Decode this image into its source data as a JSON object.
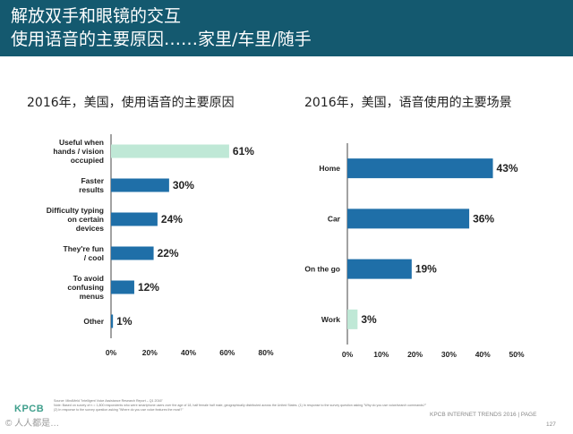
{
  "header": {
    "line1": "解放双手和眼镜的交互",
    "line2": "使用语音的主要原因……家里/车里/随手"
  },
  "colors": {
    "header_bg": "#14596f",
    "primary_bar": "#1f6fa8",
    "highlight_bar": "#bfe8d6",
    "axis": "#444444"
  },
  "chart_data": [
    {
      "type": "bar",
      "orientation": "horizontal",
      "title": "2016年，美国，使用语音的主要原因",
      "categories": [
        "Useful when hands / vision occupied",
        "Faster results",
        "Difficulty typing on certain devices",
        "They're fun / cool",
        "To avoid confusing menus",
        "Other"
      ],
      "category_lines": [
        [
          "Useful when",
          "hands / vision",
          "occupied"
        ],
        [
          "Faster",
          "results"
        ],
        [
          "Difficulty typing",
          "on certain",
          "devices"
        ],
        [
          "They're fun",
          "/ cool"
        ],
        [
          "To avoid",
          "confusing",
          "menus"
        ],
        [
          "Other"
        ]
      ],
      "values": [
        61,
        30,
        24,
        22,
        12,
        1
      ],
      "value_labels": [
        "61%",
        "30%",
        "24%",
        "22%",
        "12%",
        "1%"
      ],
      "xlim": [
        0,
        80
      ],
      "ticks": [
        "0%",
        "20%",
        "40%",
        "60%",
        "80%"
      ],
      "highlight_index": 0
    },
    {
      "type": "bar",
      "orientation": "horizontal",
      "title": "2016年，美国，语音使用的主要场景",
      "categories": [
        "Home",
        "Car",
        "On the go",
        "Work"
      ],
      "category_lines": [
        [
          "Home"
        ],
        [
          "Car"
        ],
        [
          "On the go"
        ],
        [
          "Work"
        ]
      ],
      "values": [
        43,
        36,
        19,
        3
      ],
      "value_labels": [
        "43%",
        "36%",
        "19%",
        "3%"
      ],
      "xlim": [
        0,
        50
      ],
      "ticks": [
        "0%",
        "10%",
        "20%",
        "30%",
        "40%",
        "50%"
      ],
      "highlight_index": 3
    }
  ],
  "footer": {
    "source": "Source: MindMeld \"Intelligent Voice Assistance Research Report – Q1 2016\"",
    "note": "Note: Based on survey of n = 1,800 respondents who were smartphone users over the age of 18, half female half male, geographically distributed across the United States. (1) In response to the survey question asking \"Why do you use voice/search commands?\" (2) In response to the survey question asking \"Where do you use voice features the most?\"",
    "brand": "KPCB",
    "trend_label": "KPCB INTERNET TRENDS 2016  |  PAGE",
    "page_number": "127",
    "watermark": "© 人人都是…"
  }
}
